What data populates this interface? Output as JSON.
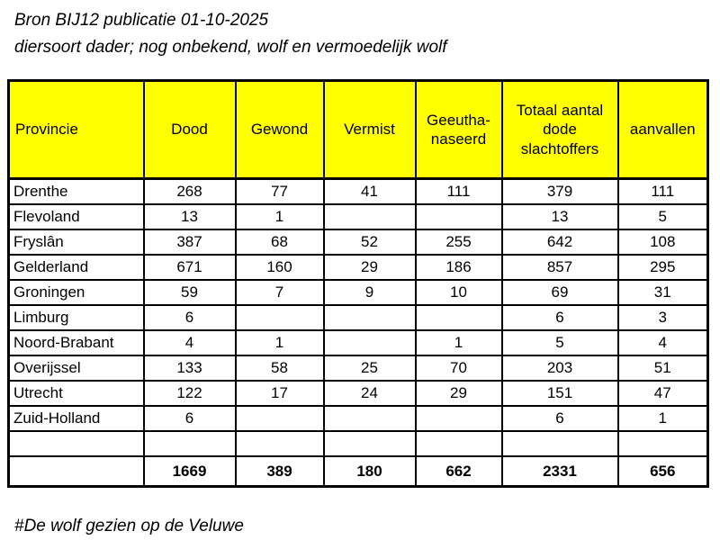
{
  "header": {
    "source_line": "Bron BIJ12 publicatie 01-10-2025",
    "filter_line": "diersoort dader; nog onbekend, wolf en vermoedelijk wolf"
  },
  "table": {
    "columns": [
      "Provincie",
      "Dood",
      "Gewond",
      "Vermist",
      "Geeutha-naseerd",
      "Totaal aantal dode slachtoffers",
      "aanvallen"
    ],
    "rows": [
      {
        "province": "Drenthe",
        "values": [
          "268",
          "77",
          "41",
          "111",
          "379",
          "111"
        ]
      },
      {
        "province": "Flevoland",
        "values": [
          "13",
          "1",
          "",
          "",
          "13",
          "5"
        ]
      },
      {
        "province": "Fryslân",
        "values": [
          "387",
          "68",
          "52",
          "255",
          "642",
          "108"
        ]
      },
      {
        "province": "Gelderland",
        "values": [
          "671",
          "160",
          "29",
          "186",
          "857",
          "295"
        ]
      },
      {
        "province": "Groningen",
        "values": [
          "59",
          "7",
          "9",
          "10",
          "69",
          "31"
        ]
      },
      {
        "province": "Limburg",
        "values": [
          "6",
          "",
          "",
          "",
          "6",
          "3"
        ]
      },
      {
        "province": "Noord-Brabant",
        "values": [
          "4",
          "1",
          "",
          "1",
          "5",
          "4"
        ]
      },
      {
        "province": "Overijssel",
        "values": [
          "133",
          "58",
          "25",
          "70",
          "203",
          "51"
        ]
      },
      {
        "province": "Utrecht",
        "values": [
          "122",
          "17",
          "24",
          "29",
          "151",
          "47"
        ]
      },
      {
        "province": "Zuid-Holland",
        "values": [
          "6",
          "",
          "",
          "",
          "6",
          "1"
        ]
      },
      {
        "province": "",
        "values": [
          "",
          "",
          "",
          "",
          "",
          ""
        ]
      }
    ],
    "totals": {
      "label": "",
      "values": [
        "1669",
        "389",
        "180",
        "662",
        "2331",
        "656"
      ]
    }
  },
  "footer": {
    "note": "#De wolf gezien op de Veluwe"
  },
  "colors": {
    "header_bg": "#FFFF00",
    "border": "#000000",
    "text": "#000000",
    "background": "#FFFFFF"
  }
}
